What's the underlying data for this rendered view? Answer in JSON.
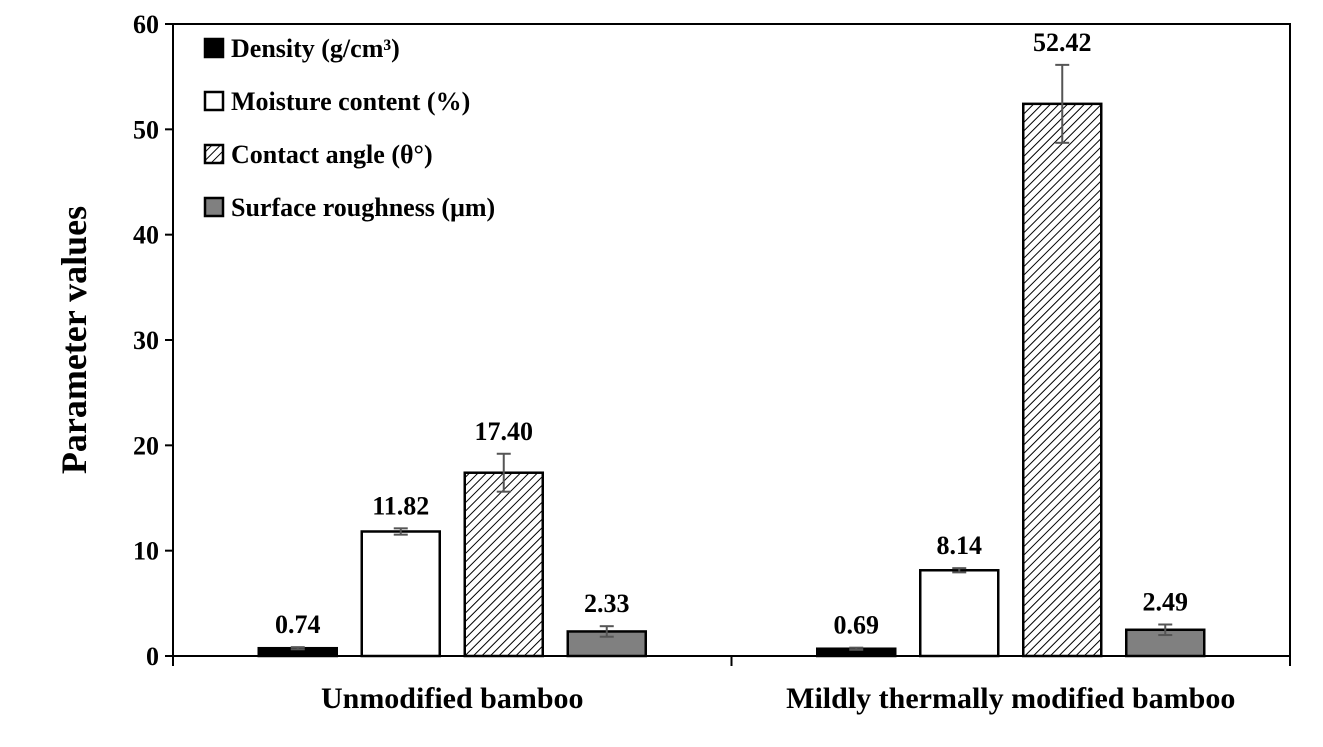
{
  "chart_data": {
    "type": "bar",
    "ylabel": "Parameter values",
    "xlabel": "",
    "ylim": [
      0,
      60
    ],
    "yticks": [
      "0",
      "10",
      "20",
      "30",
      "40",
      "50",
      "60"
    ],
    "categories": [
      "Unmodified bamboo",
      "Mildly thermally modified bamboo"
    ],
    "legend_position": "top-left",
    "series": [
      {
        "name": "Density (g/cm³)",
        "fill": "#000000",
        "pattern": "solid",
        "values": [
          0.74,
          0.69
        ],
        "errors": [
          0.1,
          0.1
        ],
        "labels": [
          "0.74",
          "0.69"
        ]
      },
      {
        "name": "Moisture content (%)",
        "fill": "#ffffff",
        "pattern": "solid",
        "values": [
          11.82,
          8.14
        ],
        "errors": [
          0.3,
          0.2
        ],
        "labels": [
          "11.82",
          "8.14"
        ]
      },
      {
        "name": "Contact angle (θ°)",
        "fill": "#ffffff",
        "pattern": "hatch",
        "values": [
          17.4,
          52.42
        ],
        "errors": [
          1.8,
          3.7
        ],
        "labels": [
          "17.40",
          "52.42"
        ]
      },
      {
        "name": "Surface roughness (μm)",
        "fill": "#808080",
        "pattern": "solid",
        "values": [
          2.33,
          2.49
        ],
        "errors": [
          0.5,
          0.5
        ],
        "labels": [
          "2.33",
          "2.49"
        ]
      }
    ]
  }
}
